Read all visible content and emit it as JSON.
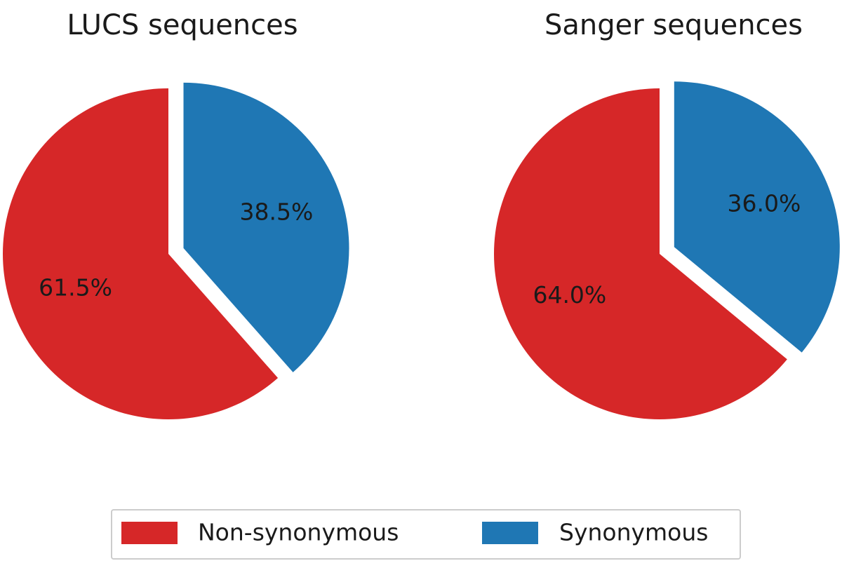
{
  "chart_data": [
    {
      "type": "pie",
      "title": "LUCS sequences",
      "slices": [
        {
          "label": "Non-synonymous",
          "value": 61.5,
          "display": "61.5%",
          "color": "#d62728",
          "explode": false
        },
        {
          "label": "Synonymous",
          "value": 38.5,
          "display": "38.5%",
          "color": "#1f77b4",
          "explode": true
        }
      ]
    },
    {
      "type": "pie",
      "title": "Sanger sequences",
      "slices": [
        {
          "label": "Non-synonymous",
          "value": 64.0,
          "display": "64.0%",
          "color": "#d62728",
          "explode": false
        },
        {
          "label": "Synonymous",
          "value": 36.0,
          "display": "36.0%",
          "color": "#1f77b4",
          "explode": true
        }
      ]
    }
  ],
  "legend": {
    "placement": "bottom-center",
    "entries": [
      {
        "label": "Non-synonymous",
        "color": "#d62728"
      },
      {
        "label": "Synonymous",
        "color": "#1f77b4"
      }
    ]
  }
}
